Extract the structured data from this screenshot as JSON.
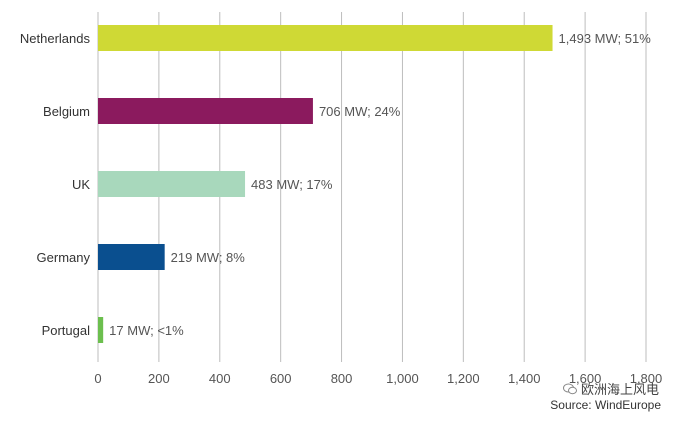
{
  "chart_data": {
    "type": "bar",
    "orientation": "horizontal",
    "categories": [
      "Netherlands",
      "Belgium",
      "UK",
      "Germany",
      "Portugal"
    ],
    "values": [
      1493,
      706,
      483,
      219,
      17
    ],
    "data_labels": [
      "1,493 MW; 51%",
      "706 MW; 24%",
      "483 MW; 17%",
      "219 MW; 8%",
      "17 MW; <1%"
    ],
    "colors": [
      "#cfd935",
      "#8b1a5e",
      "#a8d8bc",
      "#0a4f8f",
      "#6cbf4e"
    ],
    "x_ticks": [
      "0",
      "200",
      "400",
      "600",
      "800",
      "1,000",
      "1,200",
      "1,400",
      "1,600",
      "1,800"
    ],
    "xlim": [
      0,
      1800
    ],
    "grid": true,
    "title": "",
    "xlabel": "",
    "ylabel": ""
  },
  "watermark": "欧洲海上风电",
  "source": "Source: WindEurope"
}
